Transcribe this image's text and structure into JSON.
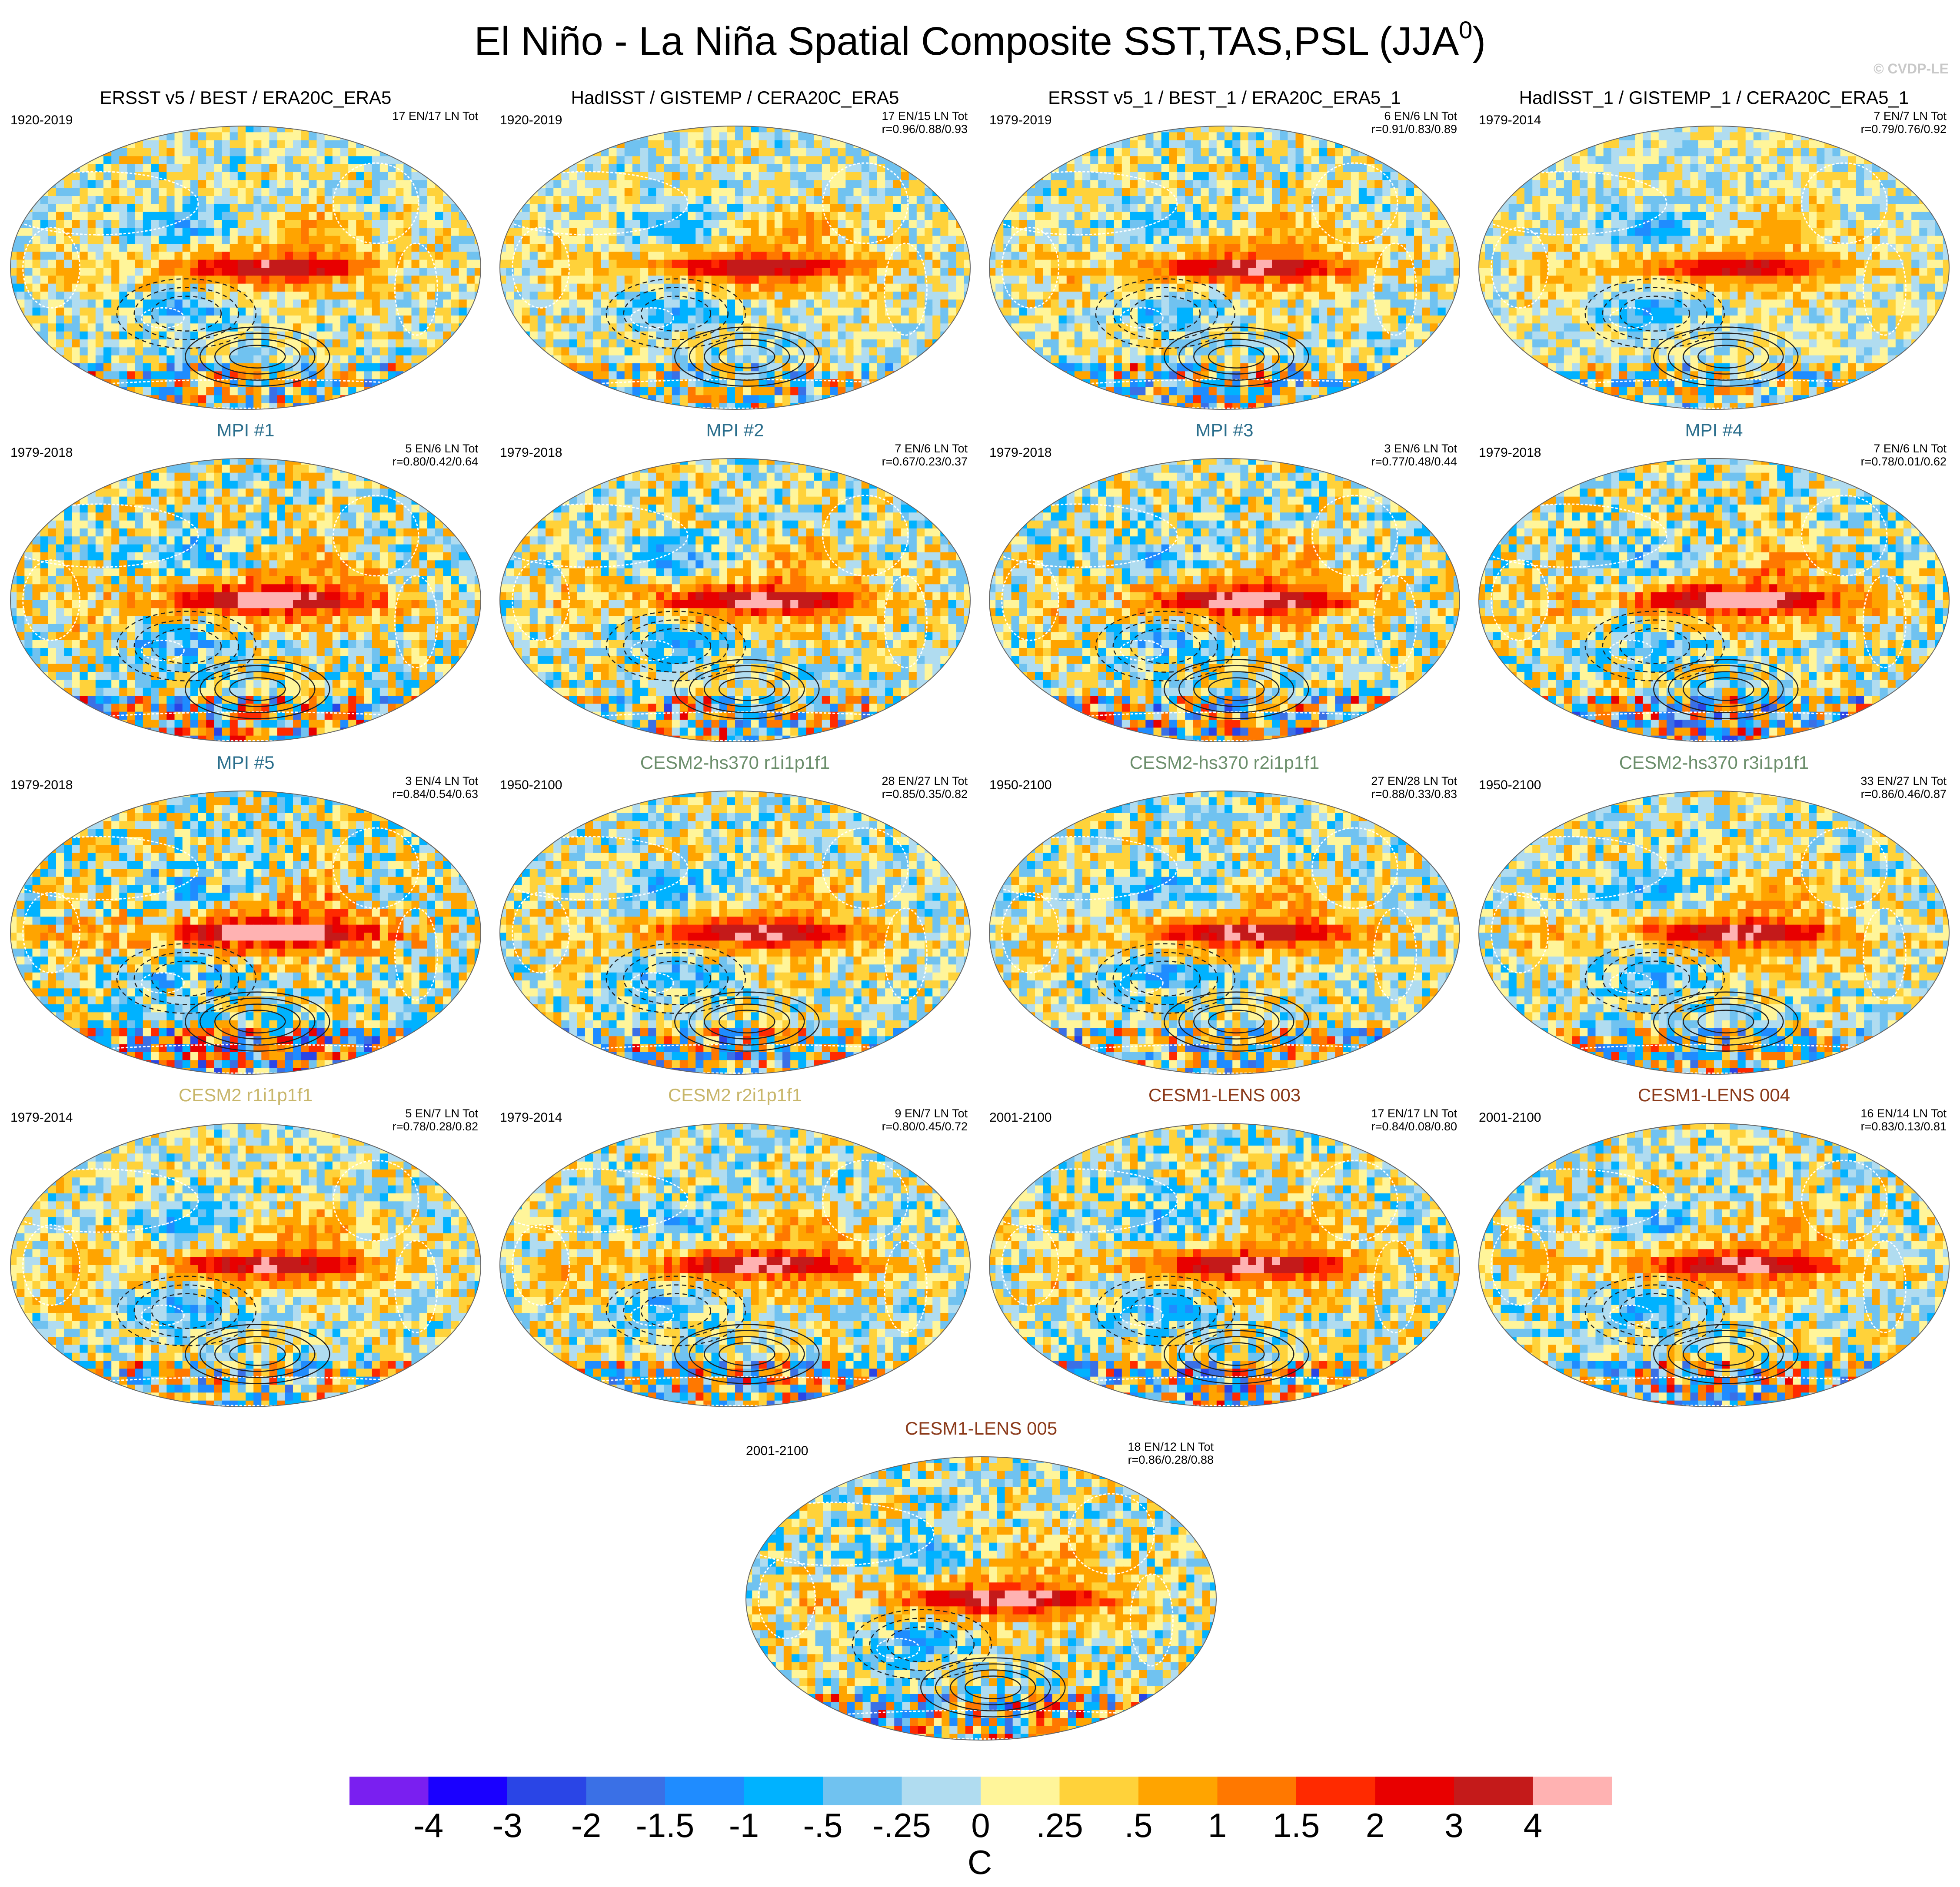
{
  "title": {
    "text": "El Niño - La Niña Spatial Composite SST,TAS,PSL (JJA",
    "superscript": "0",
    "suffix": ")"
  },
  "watermark": "© CVDP-LE",
  "chart_data": {
    "type": "heatmap",
    "projection": "robinson-like global map panels",
    "panels": [
      {
        "title": "ERSST v5 / BEST / ERA20C_ERA5",
        "years": "1920-2019",
        "stat1": "17 EN/17 LN Tot",
        "stat2": "",
        "title_color": "#000000",
        "intensity": 1.0,
        "seed": 11
      },
      {
        "title": "HadISST / GISTEMP / CERA20C_ERA5",
        "years": "1920-2019",
        "stat1": "17 EN/15 LN Tot",
        "stat2": "r=0.96/0.88/0.93",
        "title_color": "#000000",
        "intensity": 0.95,
        "seed": 12
      },
      {
        "title": "ERSST v5_1 / BEST_1 / ERA20C_ERA5_1",
        "years": "1979-2019",
        "stat1": "6 EN/6 LN Tot",
        "stat2": "r=0.91/0.83/0.89",
        "title_color": "#000000",
        "intensity": 1.05,
        "seed": 13
      },
      {
        "title": "HadISST_1 / GISTEMP_1 / CERA20C_ERA5_1",
        "years": "1979-2014",
        "stat1": "7 EN/7 LN Tot",
        "stat2": "r=0.79/0.76/0.92",
        "title_color": "#000000",
        "intensity": 0.8,
        "seed": 14
      },
      {
        "title": "MPI #1",
        "years": "1979-2018",
        "stat1": "5 EN/6 LN Tot",
        "stat2": "r=0.80/0.42/0.64",
        "title_color": "#2a6e8c",
        "intensity": 1.35,
        "seed": 21
      },
      {
        "title": "MPI #2",
        "years": "1979-2018",
        "stat1": "7 EN/6 LN Tot",
        "stat2": "r=0.67/0.23/0.37",
        "title_color": "#2a6e8c",
        "intensity": 1.2,
        "seed": 22
      },
      {
        "title": "MPI #3",
        "years": "1979-2018",
        "stat1": "3 EN/6 LN Tot",
        "stat2": "r=0.77/0.48/0.44",
        "title_color": "#2a6e8c",
        "intensity": 1.3,
        "seed": 23
      },
      {
        "title": "MPI #4",
        "years": "1979-2018",
        "stat1": "7 EN/6 LN Tot",
        "stat2": "r=0.78/0.01/0.62",
        "title_color": "#2a6e8c",
        "intensity": 1.3,
        "seed": 24
      },
      {
        "title": "MPI #5",
        "years": "1979-2018",
        "stat1": "3 EN/4 LN Tot",
        "stat2": "r=0.84/0.54/0.63",
        "title_color": "#2a6e8c",
        "intensity": 1.55,
        "seed": 25
      },
      {
        "title": "CESM2-hs370 r1i1p1f1",
        "years": "1950-2100",
        "stat1": "28 EN/27 LN Tot",
        "stat2": "r=0.85/0.35/0.82",
        "title_color": "#6b8e6b",
        "intensity": 1.1,
        "seed": 31
      },
      {
        "title": "CESM2-hs370 r2i1p1f1",
        "years": "1950-2100",
        "stat1": "27 EN/28 LN Tot",
        "stat2": "r=0.88/0.33/0.83",
        "title_color": "#6b8e6b",
        "intensity": 1.1,
        "seed": 32
      },
      {
        "title": "CESM2-hs370 r3i1p1f1",
        "years": "1950-2100",
        "stat1": "33 EN/27 LN Tot",
        "stat2": "r=0.86/0.46/0.87",
        "title_color": "#6b8e6b",
        "intensity": 1.05,
        "seed": 33
      },
      {
        "title": "CESM2 r1i1p1f1",
        "years": "1979-2014",
        "stat1": "5 EN/7 LN Tot",
        "stat2": "r=0.78/0.28/0.82",
        "title_color": "#c8b66a",
        "intensity": 1.05,
        "seed": 41
      },
      {
        "title": "CESM2 r2i1p1f1",
        "years": "1979-2014",
        "stat1": "9 EN/7 LN Tot",
        "stat2": "r=0.80/0.45/0.72",
        "title_color": "#c8b66a",
        "intensity": 1.1,
        "seed": 42
      },
      {
        "title": "CESM1-LENS 003",
        "years": "2001-2100",
        "stat1": "17 EN/17 LN Tot",
        "stat2": "r=0.84/0.08/0.80",
        "title_color": "#8b3a1a",
        "intensity": 1.15,
        "seed": 51
      },
      {
        "title": "CESM1-LENS 004",
        "years": "2001-2100",
        "stat1": "16 EN/14 LN Tot",
        "stat2": "r=0.83/0.13/0.81",
        "title_color": "#8b3a1a",
        "intensity": 1.15,
        "seed": 52
      },
      {
        "title": "CESM1-LENS 005",
        "years": "2001-2100",
        "stat1": "18 EN/12 LN Tot",
        "stat2": "r=0.86/0.28/0.88",
        "title_color": "#8b3a1a",
        "intensity": 1.2,
        "seed": 53
      }
    ],
    "colorbar": {
      "labels": [
        "-4",
        "-3",
        "-2",
        "-1.5",
        "-1",
        "-.5",
        "-.25",
        "0",
        ".25",
        ".5",
        "1",
        "1.5",
        "2",
        "3",
        "4"
      ],
      "thresholds": [
        -4,
        -3,
        -2,
        -1.5,
        -1,
        -0.5,
        -0.25,
        0,
        0.25,
        0.5,
        1,
        1.5,
        2,
        3,
        4
      ],
      "colors": [
        "#7a1ff0",
        "#1a00ff",
        "#2a45e6",
        "#3a70e6",
        "#1f8cff",
        "#00b2ff",
        "#70c2f0",
        "#b0dcf0",
        "#fff59a",
        "#ffd23a",
        "#ffa400",
        "#ff7800",
        "#ff2a00",
        "#e80000",
        "#c41a1a",
        "#ffb2b2"
      ],
      "units": "C"
    }
  }
}
